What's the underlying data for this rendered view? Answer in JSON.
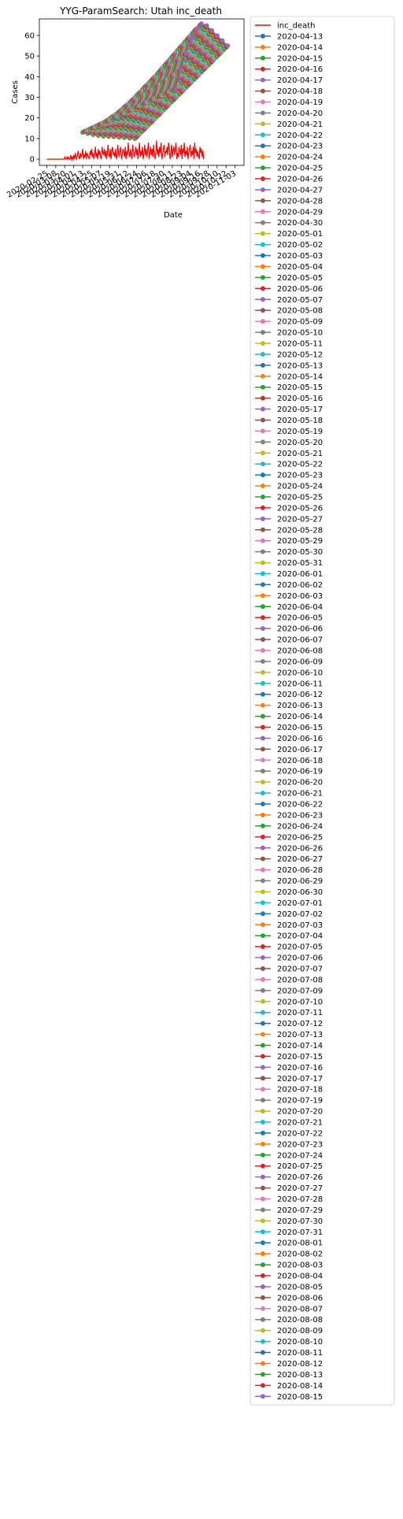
{
  "chart_data": {
    "type": "line",
    "title": "YYG-ParamSearch: Utah inc_death",
    "xlabel": "Date",
    "ylabel": "Cases",
    "ylim": [
      -3,
      68
    ],
    "xlim": [
      "2020-02-15",
      "2020-11-15"
    ],
    "yticks": [
      0,
      10,
      20,
      30,
      40,
      50,
      60
    ],
    "xticks": [
      "2020-02-25",
      "2020-03-08",
      "2020-03-20",
      "2020-04-01",
      "2020-04-13",
      "2020-04-25",
      "2020-05-07",
      "2020-05-19",
      "2020-05-31",
      "2020-06-12",
      "2020-06-24",
      "2020-07-06",
      "2020-07-18",
      "2020-07-30",
      "2020-08-11",
      "2020-08-23",
      "2020-09-04",
      "2020-09-16",
      "2020-09-28",
      "2020-10-10",
      "2020-10-22",
      "2020-11-03"
    ],
    "grid": false,
    "legend_position": "outside-right",
    "observed": {
      "name": "inc_death",
      "color": "#ff0000",
      "start": "2020-02-25",
      "values": [
        0,
        0,
        0,
        0,
        0,
        0,
        0,
        0,
        0,
        0,
        0,
        0,
        0,
        0,
        0,
        0,
        0,
        0,
        0,
        0,
        0,
        0,
        0,
        0,
        1,
        0,
        0,
        1,
        0,
        1,
        0,
        0,
        2,
        0,
        1,
        0,
        2,
        0,
        3,
        1,
        0,
        2,
        4,
        1,
        0,
        3,
        1,
        2,
        5,
        0,
        2,
        1,
        4,
        0,
        3,
        2,
        1,
        0,
        4,
        2,
        5,
        1,
        3,
        0,
        2,
        6,
        1,
        3,
        0,
        5,
        2,
        4,
        1,
        0,
        6,
        3,
        2,
        5,
        1,
        4,
        0,
        3,
        7,
        2,
        1,
        5,
        0,
        4,
        6,
        2,
        3,
        1,
        5,
        0,
        2,
        7,
        3,
        1,
        4,
        6,
        0,
        2,
        5,
        3,
        1,
        6,
        0,
        4,
        2,
        8,
        3,
        1,
        5,
        2,
        0,
        7,
        4,
        1,
        3,
        6,
        2,
        5,
        0,
        3,
        8,
        1,
        4,
        2,
        6,
        0,
        3,
        7,
        2,
        5,
        1,
        4,
        8,
        0,
        3,
        6,
        2,
        5,
        1,
        7,
        3,
        0,
        4,
        9,
        2,
        5,
        1,
        6,
        3,
        8,
        0,
        2,
        5,
        7,
        1,
        4,
        3,
        6,
        2,
        8,
        5,
        0,
        3,
        7,
        1,
        4,
        6,
        2,
        5,
        8,
        0,
        3,
        1,
        6,
        4,
        2,
        7,
        0,
        5,
        3,
        8,
        1,
        4,
        2,
        6,
        0,
        3,
        5,
        7,
        1,
        4,
        2,
        6,
        0,
        8,
        3,
        5,
        1,
        4,
        2,
        0,
        6,
        3,
        5,
        1,
        4,
        0
      ]
    },
    "forecast_colors": [
      "#1f77b4",
      "#ff7f0e",
      "#2ca02c",
      "#d62728",
      "#9467bd",
      "#8c564b",
      "#e377c2",
      "#7f7f7f",
      "#bcbd22",
      "#17becf"
    ],
    "forecast_dates": [
      "2020-04-13",
      "2020-04-14",
      "2020-04-15",
      "2020-04-16",
      "2020-04-17",
      "2020-04-18",
      "2020-04-19",
      "2020-04-20",
      "2020-04-21",
      "2020-04-22",
      "2020-04-23",
      "2020-04-24",
      "2020-04-25",
      "2020-04-26",
      "2020-04-27",
      "2020-04-28",
      "2020-04-29",
      "2020-04-30",
      "2020-05-01",
      "2020-05-02",
      "2020-05-03",
      "2020-05-04",
      "2020-05-05",
      "2020-05-06",
      "2020-05-07",
      "2020-05-08",
      "2020-05-09",
      "2020-05-10",
      "2020-05-11",
      "2020-05-12",
      "2020-05-13",
      "2020-05-14",
      "2020-05-15",
      "2020-05-16",
      "2020-05-17",
      "2020-05-18",
      "2020-05-19",
      "2020-05-20",
      "2020-05-21",
      "2020-05-22",
      "2020-05-23",
      "2020-05-24",
      "2020-05-25",
      "2020-05-26",
      "2020-05-27",
      "2020-05-28",
      "2020-05-29",
      "2020-05-30",
      "2020-05-31",
      "2020-06-01",
      "2020-06-02",
      "2020-06-03",
      "2020-06-04",
      "2020-06-05",
      "2020-06-06",
      "2020-06-07",
      "2020-06-08",
      "2020-06-09",
      "2020-06-10",
      "2020-06-11",
      "2020-06-12",
      "2020-06-13",
      "2020-06-14",
      "2020-06-15",
      "2020-06-16",
      "2020-06-17",
      "2020-06-18",
      "2020-06-19",
      "2020-06-20",
      "2020-06-21",
      "2020-06-22",
      "2020-06-23",
      "2020-06-24",
      "2020-06-25",
      "2020-06-26",
      "2020-06-27",
      "2020-06-28",
      "2020-06-29",
      "2020-06-30",
      "2020-07-01",
      "2020-07-02",
      "2020-07-03",
      "2020-07-04",
      "2020-07-05",
      "2020-07-06",
      "2020-07-07",
      "2020-07-08",
      "2020-07-09",
      "2020-07-10",
      "2020-07-11",
      "2020-07-12",
      "2020-07-13",
      "2020-07-14",
      "2020-07-15",
      "2020-07-16",
      "2020-07-17",
      "2020-07-18",
      "2020-07-19",
      "2020-07-20",
      "2020-07-21",
      "2020-07-22",
      "2020-07-23",
      "2020-07-24",
      "2020-07-25",
      "2020-07-26",
      "2020-07-27",
      "2020-07-28",
      "2020-07-29",
      "2020-07-30",
      "2020-07-31",
      "2020-08-01",
      "2020-08-02",
      "2020-08-03",
      "2020-08-04",
      "2020-08-05",
      "2020-08-06",
      "2020-08-07",
      "2020-08-08",
      "2020-08-09",
      "2020-08-10",
      "2020-08-11",
      "2020-08-12",
      "2020-08-13",
      "2020-08-14",
      "2020-08-15"
    ],
    "forecast_shape": {
      "horizon_points": 11,
      "step_days": 7,
      "start_value_first": 13,
      "start_value_last": 34,
      "peak_value_first": 11,
      "peak_value_last": 66,
      "end_value_first": 10,
      "end_value_last": 55
    }
  }
}
